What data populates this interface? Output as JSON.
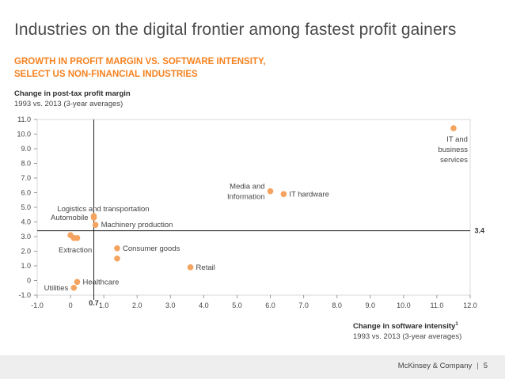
{
  "page": {
    "title": "Industries on the digital frontier among fastest profit gainers",
    "subtitle_lines": [
      "GROWTH IN PROFIT MARGIN VS. SOFTWARE INTENSITY,",
      "SELECT US NON-FINANCIAL INDUSTRIES"
    ],
    "footer": {
      "company": "McKinsey & Company",
      "page_number": "5"
    }
  },
  "colors": {
    "accent": "#f58220",
    "marker": "#f4a460",
    "reference_line": "#222222",
    "grid": "#d9d9d9"
  },
  "chart_data": {
    "type": "scatter",
    "title": "",
    "ylabel": "Change in post-tax profit margin",
    "ylabel_note": "1993 vs. 2013 (3-year averages)",
    "xlabel": "Change in software intensity",
    "xlabel_sup": "1",
    "xlabel_note": "1993 vs. 2013 (3-year averages)",
    "xlim": [
      -1.0,
      12.0
    ],
    "ylim": [
      -1.0,
      11.0
    ],
    "x_ticks": [
      "-1.0",
      "0",
      "1.0",
      "2.0",
      "3.0",
      "4.0",
      "5.0",
      "6.0",
      "7.0",
      "8.0",
      "9.0",
      "10.0",
      "11.0",
      "12.0"
    ],
    "x_tick_values": [
      -1,
      0,
      1,
      2,
      3,
      4,
      5,
      6,
      7,
      8,
      9,
      10,
      11,
      12
    ],
    "y_ticks": [
      "-1.0",
      "0",
      "1.0",
      "2.0",
      "3.0",
      "4.0",
      "5.0",
      "6.0",
      "7.0",
      "8.0",
      "9.0",
      "10.0",
      "11.0"
    ],
    "y_tick_values": [
      -1,
      0,
      1,
      2,
      3,
      4,
      5,
      6,
      7,
      8,
      9,
      10,
      11
    ],
    "reference_lines": {
      "x": 0.7,
      "x_label": "0.7",
      "y": 3.4,
      "y_label": "3.4"
    },
    "points": [
      {
        "x": 11.5,
        "y": 10.4,
        "label_lines": [
          "IT and",
          "business",
          "services"
        ],
        "label_pos": "below-left"
      },
      {
        "x": 6.0,
        "y": 6.1,
        "label_lines": [
          "Media and",
          "Information"
        ],
        "label_pos": "left"
      },
      {
        "x": 6.4,
        "y": 5.9,
        "label_lines": [
          "IT hardware"
        ],
        "label_pos": "right"
      },
      {
        "x": 0.7,
        "y": 4.4,
        "label_lines": [
          "Logistics and transportation"
        ],
        "label_pos": "left-up"
      },
      {
        "x": 0.75,
        "y": 3.8,
        "label_lines": [
          "Machinery production"
        ],
        "label_pos": "right"
      },
      {
        "x": 0.7,
        "y": 4.3,
        "label_lines": [
          "Automobile"
        ],
        "label_pos": "left"
      },
      {
        "x": 0.0,
        "y": 3.1,
        "label_lines": [],
        "label_pos": "none"
      },
      {
        "x": 0.1,
        "y": 2.9,
        "label_lines": [
          "Extraction"
        ],
        "label_pos": "below-left"
      },
      {
        "x": 0.2,
        "y": 2.9,
        "label_lines": [],
        "label_pos": "none"
      },
      {
        "x": 1.4,
        "y": 2.2,
        "label_lines": [
          "Consumer goods"
        ],
        "label_pos": "right"
      },
      {
        "x": 1.4,
        "y": 1.5,
        "label_lines": [],
        "label_pos": "none"
      },
      {
        "x": 3.6,
        "y": 0.9,
        "label_lines": [
          "Retail"
        ],
        "label_pos": "right"
      },
      {
        "x": 0.2,
        "y": -0.1,
        "label_lines": [
          "Healthcare"
        ],
        "label_pos": "right"
      },
      {
        "x": 0.1,
        "y": -0.5,
        "label_lines": [
          "Utilities"
        ],
        "label_pos": "left"
      }
    ]
  }
}
